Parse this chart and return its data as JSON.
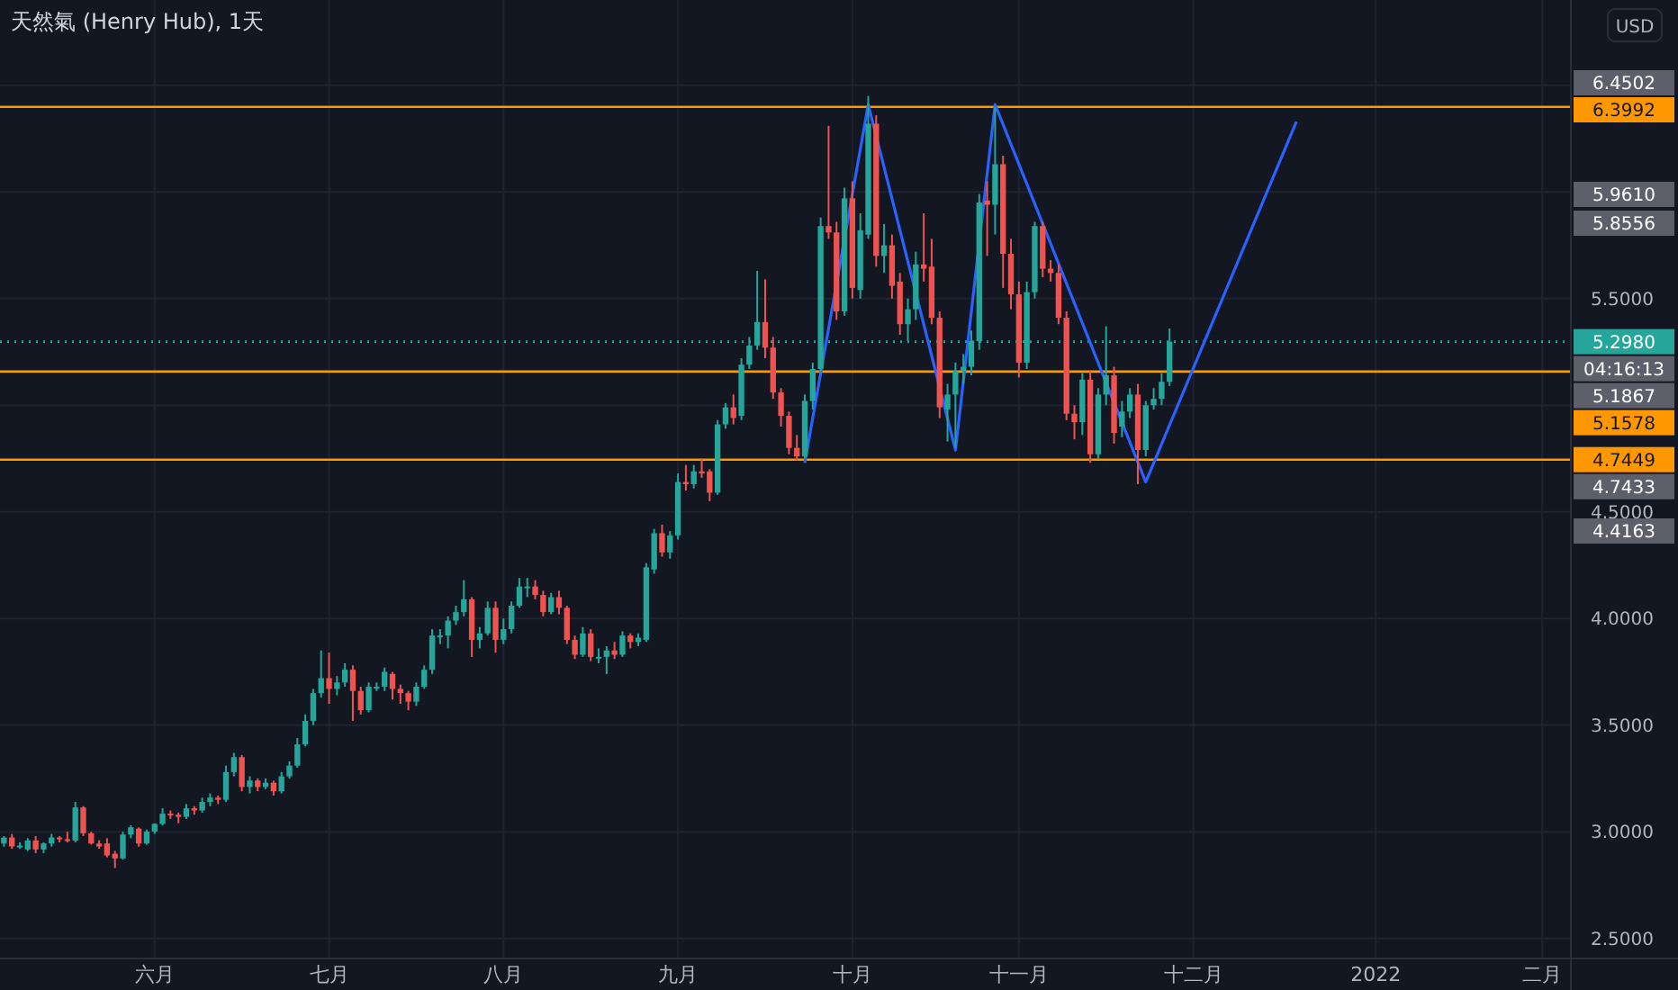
{
  "chart_data": {
    "type": "candlestick",
    "title": "天然氣 (Henry Hub), 1天",
    "categories": [
      null,
      null,
      null,
      null,
      null,
      null,
      null,
      null,
      null,
      null,
      null,
      null,
      null,
      null,
      null,
      null,
      null,
      null,
      null,
      "六月",
      null,
      null,
      null,
      null,
      null,
      null,
      null,
      null,
      null,
      null,
      null,
      null,
      null,
      null,
      null,
      null,
      null,
      null,
      null,
      null,
      null,
      "七月",
      null,
      null,
      null,
      null,
      null,
      null,
      null,
      null,
      null,
      null,
      null,
      null,
      null,
      null,
      null,
      null,
      null,
      null,
      null,
      null,
      null,
      "八月",
      null,
      null,
      null,
      null,
      null,
      null,
      null,
      null,
      null,
      null,
      null,
      null,
      null,
      null,
      null,
      null,
      null,
      null,
      null,
      null,
      null,
      "九月",
      null,
      null,
      null,
      null,
      null,
      null,
      null,
      null,
      null,
      null,
      null,
      null,
      null,
      null,
      null,
      null,
      null,
      null,
      null,
      null,
      null,
      "十月",
      null,
      null,
      null,
      null,
      null,
      null,
      null,
      null,
      null,
      null,
      null,
      null,
      null,
      null,
      null,
      null,
      null,
      null,
      null,
      null,
      "十一月",
      null,
      null,
      null,
      null,
      null,
      null,
      null,
      null,
      null,
      null,
      null,
      null,
      null,
      null,
      null,
      null,
      null,
      null,
      null,
      null,
      null,
      "十二月",
      null,
      null,
      null,
      null,
      null,
      null,
      null,
      null,
      null,
      null,
      null,
      null,
      null,
      null,
      null,
      null,
      null,
      null,
      null,
      null,
      null,
      null,
      "2022",
      null,
      null,
      null,
      null,
      null,
      null,
      null,
      null,
      null,
      null,
      null,
      null,
      null,
      null,
      null,
      null,
      null,
      null,
      null,
      null,
      "二月",
      null,
      null,
      null
    ],
    "ohlc": [
      [
        2.945,
        2.98,
        2.93,
        2.973
      ],
      [
        2.973,
        2.99,
        2.92,
        2.931
      ],
      [
        2.931,
        2.95,
        2.92,
        2.935
      ],
      [
        2.917,
        2.97,
        2.91,
        2.959
      ],
      [
        2.959,
        2.98,
        2.9,
        2.917
      ],
      [
        2.917,
        2.95,
        2.9,
        2.945
      ],
      [
        2.945,
        2.99,
        2.93,
        2.973
      ],
      [
        2.973,
        2.98,
        2.95,
        2.965
      ],
      [
        2.965,
        3.0,
        2.95,
        2.96
      ],
      [
        2.959,
        3.14,
        2.95,
        3.114
      ],
      [
        3.114,
        3.12,
        2.98,
        2.993
      ],
      [
        2.993,
        3.0,
        2.94,
        2.945
      ],
      [
        2.945,
        2.96,
        2.92,
        2.931
      ],
      [
        2.945,
        2.97,
        2.88,
        2.889
      ],
      [
        2.897,
        2.91,
        2.83,
        2.875
      ],
      [
        2.875,
        3.0,
        2.87,
        2.987
      ],
      [
        2.987,
        3.03,
        2.97,
        3.021
      ],
      [
        3.015,
        3.02,
        2.93,
        2.945
      ],
      [
        2.945,
        3.01,
        2.94,
        3.001
      ],
      [
        3.001,
        3.04,
        2.99,
        3.037
      ],
      [
        3.037,
        3.11,
        3.03,
        3.085
      ],
      [
        3.085,
        3.1,
        3.06,
        3.08
      ],
      [
        3.08,
        3.09,
        3.04,
        3.07
      ],
      [
        3.07,
        3.13,
        3.06,
        3.11
      ],
      [
        3.11,
        3.12,
        3.08,
        3.1
      ],
      [
        3.1,
        3.16,
        3.09,
        3.14
      ],
      [
        3.14,
        3.18,
        3.12,
        3.16
      ],
      [
        3.16,
        3.17,
        3.13,
        3.15
      ],
      [
        3.15,
        3.31,
        3.14,
        3.28
      ],
      [
        3.28,
        3.37,
        3.26,
        3.35
      ],
      [
        3.35,
        3.36,
        3.19,
        3.21
      ],
      [
        3.21,
        3.26,
        3.18,
        3.24
      ],
      [
        3.24,
        3.25,
        3.19,
        3.21
      ],
      [
        3.21,
        3.25,
        3.2,
        3.23
      ],
      [
        3.23,
        3.24,
        3.17,
        3.19
      ],
      [
        3.19,
        3.28,
        3.18,
        3.26
      ],
      [
        3.26,
        3.33,
        3.25,
        3.31
      ],
      [
        3.31,
        3.44,
        3.3,
        3.41
      ],
      [
        3.41,
        3.55,
        3.4,
        3.52
      ],
      [
        3.52,
        3.67,
        3.5,
        3.65
      ],
      [
        3.65,
        3.85,
        3.63,
        3.72
      ],
      [
        3.72,
        3.84,
        3.6,
        3.67
      ],
      [
        3.67,
        3.73,
        3.64,
        3.7
      ],
      [
        3.7,
        3.79,
        3.68,
        3.76
      ],
      [
        3.76,
        3.78,
        3.52,
        3.66
      ],
      [
        3.66,
        3.68,
        3.55,
        3.57
      ],
      [
        3.57,
        3.7,
        3.56,
        3.68
      ],
      [
        3.68,
        3.7,
        3.66,
        3.68
      ],
      [
        3.68,
        3.77,
        3.66,
        3.75
      ],
      [
        3.74,
        3.75,
        3.62,
        3.67
      ],
      [
        3.67,
        3.69,
        3.6,
        3.65
      ],
      [
        3.65,
        3.66,
        3.57,
        3.61
      ],
      [
        3.61,
        3.7,
        3.59,
        3.68
      ],
      [
        3.68,
        3.78,
        3.67,
        3.76
      ],
      [
        3.76,
        3.95,
        3.74,
        3.92
      ],
      [
        3.92,
        3.95,
        3.88,
        3.92
      ],
      [
        3.92,
        4.01,
        3.86,
        3.99
      ],
      [
        3.99,
        4.06,
        3.97,
        4.03
      ],
      [
        4.03,
        4.18,
        4.01,
        4.09
      ],
      [
        4.09,
        4.1,
        3.82,
        3.9
      ],
      [
        3.9,
        3.96,
        3.86,
        3.93
      ],
      [
        3.93,
        4.08,
        3.92,
        4.05
      ],
      [
        4.05,
        4.08,
        3.84,
        3.9
      ],
      [
        3.9,
        4.0,
        3.88,
        3.95
      ],
      [
        3.95,
        4.08,
        3.93,
        4.06
      ],
      [
        4.06,
        4.19,
        4.05,
        4.15
      ],
      [
        4.15,
        4.19,
        4.1,
        4.15
      ],
      [
        4.15,
        4.18,
        4.09,
        4.11
      ],
      [
        4.11,
        4.13,
        4.01,
        4.03
      ],
      [
        4.03,
        4.12,
        4.02,
        4.1
      ],
      [
        4.1,
        4.13,
        4.02,
        4.05
      ],
      [
        4.05,
        4.06,
        3.88,
        3.9
      ],
      [
        3.9,
        3.92,
        3.81,
        3.83
      ],
      [
        3.83,
        3.96,
        3.82,
        3.93
      ],
      [
        3.93,
        3.95,
        3.8,
        3.82
      ],
      [
        3.82,
        3.86,
        3.79,
        3.82
      ],
      [
        3.82,
        3.87,
        3.74,
        3.85
      ],
      [
        3.85,
        3.89,
        3.81,
        3.83
      ],
      [
        3.83,
        3.94,
        3.82,
        3.92
      ],
      [
        3.92,
        3.93,
        3.86,
        3.89
      ],
      [
        3.89,
        3.93,
        3.87,
        3.91
      ],
      [
        3.9,
        4.26,
        3.89,
        4.24
      ],
      [
        4.23,
        4.42,
        4.21,
        4.4
      ],
      [
        4.4,
        4.44,
        4.29,
        4.31
      ],
      [
        4.31,
        4.41,
        4.28,
        4.39
      ],
      [
        4.39,
        4.68,
        4.37,
        4.64
      ],
      [
        4.64,
        4.72,
        4.6,
        4.63
      ],
      [
        4.63,
        4.72,
        4.61,
        4.69
      ],
      [
        4.69,
        4.75,
        4.66,
        4.68
      ],
      [
        4.69,
        4.7,
        4.55,
        4.59
      ],
      [
        4.59,
        4.93,
        4.58,
        4.91
      ],
      [
        4.91,
        5.01,
        4.89,
        4.99
      ],
      [
        4.99,
        5.05,
        4.91,
        4.94
      ],
      [
        4.95,
        5.22,
        4.93,
        5.19
      ],
      [
        5.19,
        5.32,
        5.17,
        5.28
      ],
      [
        5.28,
        5.63,
        5.26,
        5.39
      ],
      [
        5.39,
        5.59,
        5.22,
        5.27
      ],
      [
        5.27,
        5.32,
        5.03,
        5.06
      ],
      [
        5.06,
        5.08,
        4.9,
        4.95
      ],
      [
        4.95,
        4.97,
        4.77,
        4.8
      ],
      [
        4.8,
        4.86,
        4.74,
        4.76
      ],
      [
        4.76,
        5.05,
        4.75,
        5.02
      ],
      [
        5.02,
        5.2,
        4.98,
        5.17
      ],
      [
        5.17,
        5.88,
        5.15,
        5.84
      ],
      [
        5.84,
        6.31,
        5.78,
        5.81
      ],
      [
        5.81,
        5.86,
        5.4,
        5.44
      ],
      [
        5.44,
        6.02,
        5.42,
        5.97
      ],
      [
        5.97,
        6.05,
        5.5,
        5.55
      ],
      [
        5.54,
        5.9,
        5.5,
        5.82
      ],
      [
        5.8,
        6.45,
        5.78,
        6.32
      ],
      [
        6.32,
        6.36,
        5.65,
        5.7
      ],
      [
        5.7,
        5.85,
        5.62,
        5.75
      ],
      [
        5.75,
        5.8,
        5.5,
        5.56
      ],
      [
        5.58,
        5.62,
        5.33,
        5.38
      ],
      [
        5.38,
        5.5,
        5.3,
        5.45
      ],
      [
        5.45,
        5.72,
        5.4,
        5.66
      ],
      [
        5.66,
        5.9,
        5.58,
        5.64
      ],
      [
        5.65,
        5.78,
        5.38,
        5.41
      ],
      [
        5.41,
        5.44,
        4.94,
        4.99
      ],
      [
        4.98,
        5.1,
        4.83,
        5.05
      ],
      [
        5.05,
        5.2,
        4.8,
        5.16
      ],
      [
        5.16,
        5.24,
        5.1,
        5.18
      ],
      [
        5.18,
        5.35,
        5.14,
        5.3
      ],
      [
        5.3,
        5.99,
        5.26,
        5.95
      ],
      [
        5.96,
        6.05,
        5.7,
        5.94
      ],
      [
        5.94,
        6.4,
        5.8,
        6.13
      ],
      [
        6.13,
        6.17,
        5.55,
        5.71
      ],
      [
        5.71,
        5.78,
        5.45,
        5.52
      ],
      [
        5.52,
        5.58,
        5.13,
        5.2
      ],
      [
        5.2,
        5.58,
        5.17,
        5.53
      ],
      [
        5.53,
        5.86,
        5.5,
        5.84
      ],
      [
        5.84,
        5.86,
        5.6,
        5.64
      ],
      [
        5.64,
        5.68,
        5.58,
        5.62
      ],
      [
        5.62,
        5.66,
        5.38,
        5.41
      ],
      [
        5.41,
        5.44,
        4.93,
        4.96
      ],
      [
        4.96,
        5.0,
        4.84,
        4.92
      ],
      [
        4.92,
        5.15,
        4.86,
        5.12
      ],
      [
        5.12,
        5.16,
        4.73,
        4.77
      ],
      [
        4.77,
        5.08,
        4.75,
        5.05
      ],
      [
        5.05,
        5.37,
        5.0,
        5.14
      ],
      [
        5.14,
        5.18,
        4.82,
        4.87
      ],
      [
        4.9,
        5.02,
        4.85,
        4.97
      ],
      [
        4.97,
        5.08,
        4.94,
        5.05
      ],
      [
        5.05,
        5.1,
        4.63,
        4.79
      ],
      [
        4.79,
        5.02,
        4.76,
        5.0
      ],
      [
        5.0,
        5.08,
        4.98,
        5.03
      ],
      [
        5.03,
        5.15,
        5.0,
        5.11
      ],
      [
        5.11,
        5.36,
        5.09,
        5.298
      ],
      null,
      null,
      null,
      null,
      null,
      null,
      null,
      null,
      null,
      null,
      null,
      null,
      null,
      null,
      null,
      null,
      null,
      null,
      null,
      null,
      null,
      null,
      null,
      null,
      null,
      null,
      null,
      null,
      null,
      null,
      null,
      null,
      null,
      null,
      null,
      null,
      null,
      null,
      null,
      null,
      null,
      null,
      null,
      null,
      null,
      null,
      null,
      null,
      null,
      null
    ],
    "series": [
      {
        "type": "line",
        "color": "#2962ff",
        "values": [
          null,
          null,
          null,
          null,
          null,
          null,
          null,
          null,
          null,
          null,
          null,
          null,
          null,
          null,
          null,
          null,
          null,
          null,
          null,
          null,
          null,
          null,
          null,
          null,
          null,
          null,
          null,
          null,
          null,
          null,
          null,
          null,
          null,
          null,
          null,
          null,
          null,
          null,
          null,
          null,
          null,
          null,
          null,
          null,
          null,
          null,
          null,
          null,
          null,
          null,
          null,
          null,
          null,
          null,
          null,
          null,
          null,
          null,
          null,
          null,
          null,
          null,
          null,
          null,
          null,
          null,
          null,
          null,
          null,
          null,
          null,
          null,
          null,
          null,
          null,
          null,
          null,
          null,
          null,
          null,
          null,
          null,
          null,
          null,
          null,
          null,
          null,
          null,
          null,
          null,
          null,
          null,
          null,
          null,
          null,
          null,
          null,
          null,
          null,
          null,
          null,
          4.73,
          null,
          null,
          null,
          null,
          null,
          null,
          null,
          6.41,
          null,
          null,
          null,
          null,
          null,
          null,
          null,
          null,
          null,
          null,
          4.79,
          null,
          null,
          null,
          null,
          6.41,
          null,
          null,
          null,
          null,
          null,
          null,
          null,
          null,
          null,
          null,
          null,
          null,
          null,
          null,
          null,
          null,
          null,
          null,
          4.64,
          null,
          null,
          null,
          null,
          null,
          null,
          null,
          null,
          null,
          null,
          null,
          null,
          null,
          null,
          null,
          null,
          null,
          null,
          6.33,
          null,
          null,
          null,
          null,
          null,
          null,
          null,
          null,
          null,
          null,
          null,
          null,
          null,
          null,
          null,
          null,
          null,
          null,
          null,
          null,
          null,
          null,
          null,
          null,
          null,
          null,
          null,
          null,
          null,
          null,
          null,
          null,
          null,
          null
        ]
      }
    ],
    "ylim": [
      2.41,
      6.9
    ],
    "yticks": [
      {
        "value": 2.5,
        "label": "2.5000"
      },
      {
        "value": 3,
        "label": "3.0000"
      },
      {
        "value": 3.5,
        "label": "3.5000"
      },
      {
        "value": 4,
        "label": "4.0000"
      },
      {
        "value": 4.5,
        "label": "4.5000"
      },
      {
        "value": 5,
        "label": null
      },
      {
        "value": 5.5,
        "label": "5.5000"
      },
      {
        "value": 6,
        "label": null
      },
      {
        "value": 6.5,
        "label": null
      }
    ],
    "grid": true,
    "ref_lines": [
      {
        "axis": "y",
        "value": 6.3992,
        "label": "6.3992",
        "color": "#ff9800"
      },
      {
        "axis": "y",
        "value": 5.298,
        "label": "5.2980",
        "color": "#26a69a",
        "line_style": "dotted"
      },
      {
        "axis": "y",
        "value": 5.1578,
        "label": "5.1578",
        "color": "#ff9800"
      },
      {
        "axis": "y",
        "value": 4.7449,
        "label": "4.7449",
        "color": "#ff9800"
      }
    ],
    "annotations": [
      "USD",
      "6.4502",
      "5.9610",
      "5.8556",
      "04:16:13",
      "5.1867",
      "4.7433",
      "4.4163"
    ]
  }
}
